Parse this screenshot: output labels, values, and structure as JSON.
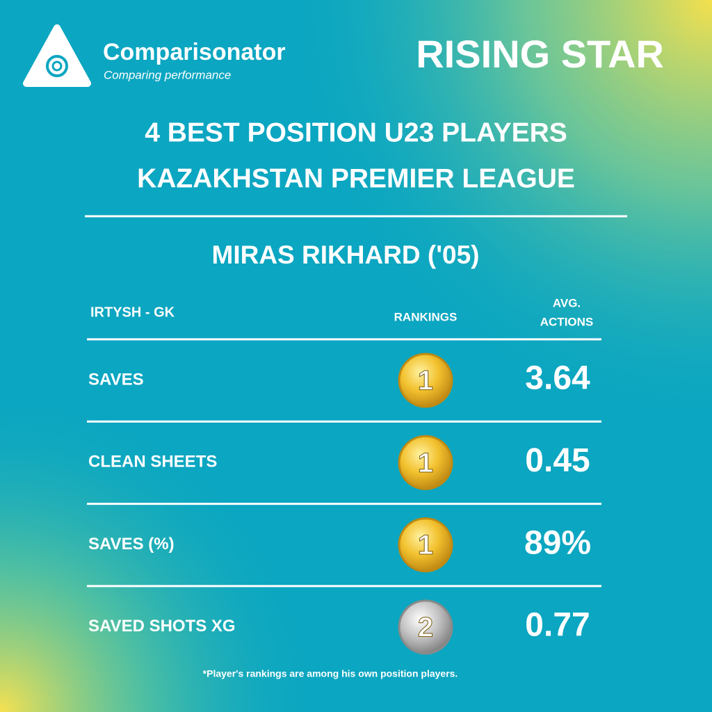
{
  "header": {
    "brand": "Comparisonator",
    "tagline": "Comparing performance",
    "badge": "RISING STAR"
  },
  "title": [
    "4 BEST POSITION U23 PLAYERS",
    "KAZAKHSTAN PREMIER LEAGUE"
  ],
  "player": "MIRAS RIKHARD ('05)",
  "table": {
    "team_position": "IRTYSH - GK",
    "columns": [
      "RANKINGS",
      [
        "AVG.",
        "ACTIONS"
      ]
    ],
    "rows": [
      {
        "label": "SAVES",
        "rank": 1,
        "value": "3.64"
      },
      {
        "label": "CLEAN SHEETS",
        "rank": 1,
        "value": "0.45"
      },
      {
        "label": "SAVES (%)",
        "rank": 1,
        "value": "89%"
      },
      {
        "label": "SAVED SHOTS XG",
        "rank": 2,
        "value": "0.77"
      }
    ]
  },
  "footnote": "*Player's rankings are among his own position players."
}
